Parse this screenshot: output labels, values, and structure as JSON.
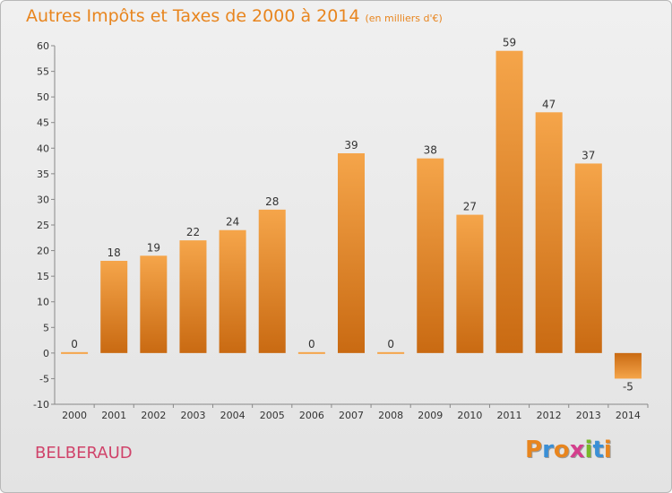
{
  "header": {
    "title": "Autres Impôts et Taxes de 2000 à 2014",
    "subtitle": "(en milliers d'€)"
  },
  "footer": {
    "commune": "BELBERAUD",
    "logo_letters": [
      "P",
      "r",
      "o",
      "x",
      "i",
      "t",
      "i"
    ],
    "logo_colors": [
      "#e8851e",
      "#3a8fd6",
      "#e8851e",
      "#d43f8d",
      "#79b82a",
      "#3a8fd6",
      "#e8851e"
    ]
  },
  "colors": {
    "bar_top": "#f5a54a",
    "bar_bottom": "#c96a12",
    "neg_top": "#c96a12",
    "neg_bottom": "#f5a54a"
  },
  "chart_data": {
    "type": "bar",
    "categories": [
      "2000",
      "2001",
      "2002",
      "2003",
      "2004",
      "2005",
      "2006",
      "2007",
      "2008",
      "2009",
      "2010",
      "2011",
      "2012",
      "2013",
      "2014"
    ],
    "values": [
      0,
      18,
      19,
      22,
      24,
      28,
      0,
      39,
      0,
      38,
      27,
      59,
      47,
      37,
      -5
    ],
    "ylim": [
      -10,
      60
    ],
    "yticks": [
      -10,
      -5,
      0,
      5,
      10,
      15,
      20,
      25,
      30,
      35,
      40,
      45,
      50,
      55,
      60
    ],
    "grid": "none",
    "title": "Autres Impôts et Taxes de 2000 à 2014",
    "xlabel": "",
    "ylabel": ""
  }
}
